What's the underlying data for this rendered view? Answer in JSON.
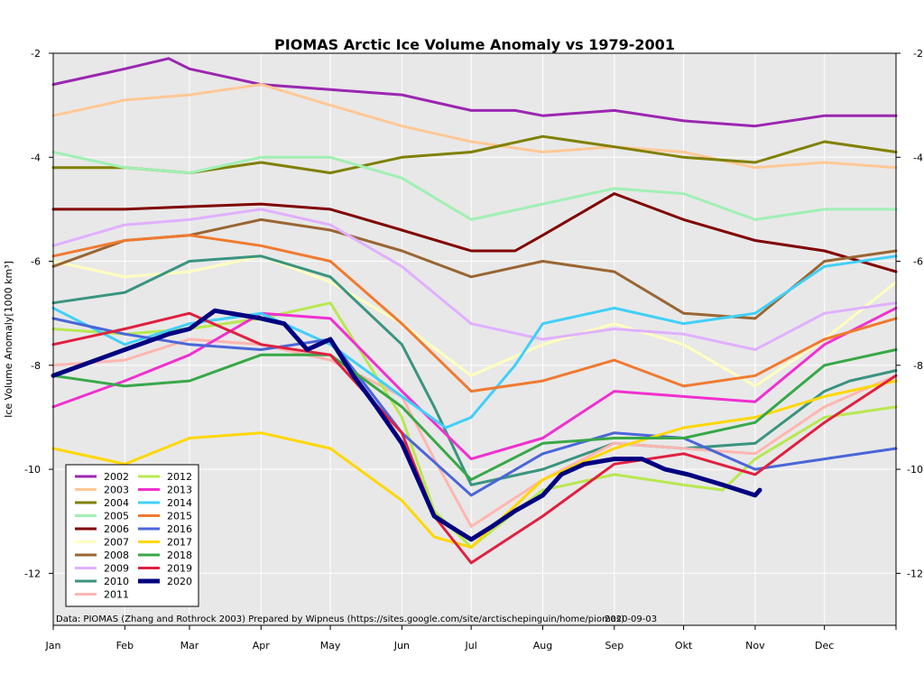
{
  "chart_data": {
    "type": "line",
    "title": "PIOMAS Arctic Ice Volume Anomaly vs 1979-2001",
    "ylabel": "Ice Volume Anomaly[1000 km³]",
    "xlabel": "",
    "ylim": [
      -13,
      -2
    ],
    "xlim": [
      0,
      365
    ],
    "y_ticks": [
      -2,
      -4,
      -6,
      -8,
      -10,
      -12
    ],
    "y_tick_labels": [
      "-2",
      "-4",
      "-6",
      "-8",
      "-10",
      "-12"
    ],
    "x_ticks": [
      0,
      31,
      59,
      90,
      120,
      151,
      181,
      212,
      243,
      273,
      304,
      334
    ],
    "x_tick_labels": [
      "Jan",
      "Feb",
      "Mar",
      "Apr",
      "May",
      "Jun",
      "Jul",
      "Aug",
      "Sep",
      "Okt",
      "Nov",
      "Dec"
    ],
    "grid": true,
    "legend_position": "bottom-left",
    "plot_background": "#e8e8e8",
    "credit": "Data: PIOMAS (Zhang and Rothrock 2003) Prepared by Wipneus (https://sites.google.com/site/arctischepinguin/home/piomas)",
    "date": "2020-09-03",
    "series": [
      {
        "name": "2002",
        "color": "#9b27b0",
        "width": 3,
        "x": [
          0,
          31,
          50,
          59,
          90,
          120,
          151,
          181,
          200,
          212,
          243,
          273,
          304,
          334,
          365
        ],
        "values": [
          -2.6,
          -2.3,
          -2.1,
          -2.3,
          -2.6,
          -2.7,
          -2.8,
          -3.1,
          -3.1,
          -3.2,
          -3.1,
          -3.3,
          -3.4,
          -3.2,
          -3.2
        ]
      },
      {
        "name": "2003",
        "color": "#ffc896",
        "width": 3,
        "x": [
          0,
          31,
          59,
          90,
          120,
          151,
          181,
          212,
          243,
          273,
          304,
          334,
          365
        ],
        "values": [
          -3.2,
          -2.9,
          -2.8,
          -2.6,
          -3.0,
          -3.4,
          -3.7,
          -3.9,
          -3.8,
          -3.9,
          -4.2,
          -4.1,
          -4.2
        ]
      },
      {
        "name": "2004",
        "color": "#808000",
        "width": 3,
        "x": [
          0,
          31,
          59,
          90,
          120,
          151,
          181,
          212,
          243,
          273,
          304,
          334,
          365
        ],
        "values": [
          -4.2,
          -4.2,
          -4.3,
          -4.1,
          -4.3,
          -4.0,
          -3.9,
          -3.6,
          -3.8,
          -4.0,
          -4.1,
          -3.7,
          -3.9
        ]
      },
      {
        "name": "2005",
        "color": "#a0f0b4",
        "width": 3,
        "x": [
          0,
          31,
          59,
          90,
          120,
          151,
          181,
          212,
          243,
          273,
          304,
          334,
          365
        ],
        "values": [
          -3.9,
          -4.2,
          -4.3,
          -4.0,
          -4.0,
          -4.4,
          -5.2,
          -4.9,
          -4.6,
          -4.7,
          -5.2,
          -5.0,
          -5.0
        ]
      },
      {
        "name": "2006",
        "color": "#800000",
        "width": 3,
        "x": [
          0,
          31,
          59,
          90,
          120,
          151,
          181,
          200,
          212,
          243,
          273,
          304,
          334,
          365
        ],
        "values": [
          -5.0,
          -5.0,
          -4.95,
          -4.9,
          -5.0,
          -5.4,
          -5.8,
          -5.8,
          -5.5,
          -4.7,
          -5.2,
          -5.6,
          -5.8,
          -6.2
        ]
      },
      {
        "name": "2007",
        "color": "#ffffc0",
        "width": 3,
        "x": [
          0,
          31,
          59,
          90,
          120,
          151,
          181,
          212,
          243,
          273,
          304,
          334,
          365
        ],
        "values": [
          -6.0,
          -6.3,
          -6.2,
          -5.9,
          -6.4,
          -7.2,
          -8.2,
          -7.6,
          -7.2,
          -7.6,
          -8.4,
          -7.5,
          -6.4
        ]
      },
      {
        "name": "2008",
        "color": "#996633",
        "width": 3,
        "x": [
          0,
          31,
          59,
          90,
          120,
          151,
          181,
          212,
          243,
          273,
          304,
          334,
          365
        ],
        "values": [
          -6.1,
          -5.6,
          -5.5,
          -5.2,
          -5.4,
          -5.8,
          -6.3,
          -6.0,
          -6.2,
          -7.0,
          -7.1,
          -6.0,
          -5.8
        ]
      },
      {
        "name": "2009",
        "color": "#e0b0ff",
        "width": 3,
        "x": [
          0,
          31,
          59,
          90,
          120,
          151,
          181,
          212,
          243,
          273,
          304,
          334,
          365
        ],
        "values": [
          -5.7,
          -5.3,
          -5.2,
          -5.0,
          -5.3,
          -6.1,
          -7.2,
          -7.5,
          -7.3,
          -7.4,
          -7.7,
          -7.0,
          -6.8
        ]
      },
      {
        "name": "2010",
        "color": "#3a9480",
        "width": 3,
        "x": [
          0,
          31,
          59,
          90,
          120,
          151,
          165,
          181,
          212,
          243,
          273,
          304,
          334,
          345,
          365
        ],
        "values": [
          -6.8,
          -6.6,
          -6.0,
          -5.9,
          -6.3,
          -7.6,
          -8.8,
          -10.3,
          -10.0,
          -9.5,
          -9.6,
          -9.5,
          -8.5,
          -8.3,
          -8.1
        ]
      },
      {
        "name": "2011",
        "color": "#ffb6b0",
        "width": 3,
        "x": [
          0,
          31,
          59,
          90,
          120,
          151,
          165,
          181,
          212,
          243,
          273,
          304,
          334,
          365
        ],
        "values": [
          -8.0,
          -7.9,
          -7.5,
          -7.6,
          -7.9,
          -8.6,
          -9.8,
          -11.1,
          -10.2,
          -9.5,
          -9.6,
          -9.7,
          -8.8,
          -8.2
        ]
      },
      {
        "name": "2012",
        "color": "#b8e850",
        "width": 3,
        "x": [
          0,
          31,
          59,
          90,
          120,
          151,
          165,
          181,
          212,
          243,
          273,
          290,
          304,
          334,
          365
        ],
        "values": [
          -7.3,
          -7.4,
          -7.3,
          -7.1,
          -6.8,
          -9.0,
          -10.8,
          -11.5,
          -10.4,
          -10.1,
          -10.3,
          -10.4,
          -9.8,
          -9.0,
          -8.8
        ]
      },
      {
        "name": "2013",
        "color": "#f030d0",
        "width": 3,
        "x": [
          0,
          31,
          59,
          90,
          120,
          151,
          181,
          212,
          243,
          273,
          304,
          334,
          365
        ],
        "values": [
          -8.8,
          -8.3,
          -7.8,
          -7.0,
          -7.1,
          -8.5,
          -9.8,
          -9.4,
          -8.5,
          -8.6,
          -8.7,
          -7.6,
          -6.9
        ]
      },
      {
        "name": "2014",
        "color": "#40d0f8",
        "width": 3,
        "x": [
          0,
          31,
          59,
          90,
          120,
          151,
          170,
          181,
          200,
          212,
          243,
          273,
          304,
          334,
          365
        ],
        "values": [
          -6.9,
          -7.6,
          -7.2,
          -7.0,
          -7.6,
          -8.6,
          -9.2,
          -9.0,
          -8.0,
          -7.2,
          -6.9,
          -7.2,
          -7.0,
          -6.1,
          -5.9
        ]
      },
      {
        "name": "2015",
        "color": "#f07a30",
        "width": 3,
        "x": [
          0,
          31,
          59,
          90,
          120,
          151,
          181,
          212,
          243,
          273,
          304,
          334,
          365
        ],
        "values": [
          -5.9,
          -5.6,
          -5.5,
          -5.7,
          -6.0,
          -7.2,
          -8.5,
          -8.3,
          -7.9,
          -8.4,
          -8.2,
          -7.5,
          -7.1
        ]
      },
      {
        "name": "2016",
        "color": "#4a66d8",
        "width": 3,
        "x": [
          0,
          31,
          59,
          90,
          120,
          151,
          181,
          212,
          243,
          273,
          304,
          334,
          365
        ],
        "values": [
          -7.1,
          -7.4,
          -7.6,
          -7.7,
          -7.5,
          -9.3,
          -10.5,
          -9.7,
          -9.3,
          -9.4,
          -10.0,
          -9.8,
          -9.6
        ]
      },
      {
        "name": "2017",
        "color": "#ffd700",
        "width": 3,
        "x": [
          0,
          31,
          59,
          90,
          120,
          151,
          165,
          181,
          212,
          243,
          273,
          304,
          334,
          365
        ],
        "values": [
          -9.6,
          -9.9,
          -9.4,
          -9.3,
          -9.6,
          -10.6,
          -11.3,
          -11.5,
          -10.2,
          -9.6,
          -9.2,
          -9.0,
          -8.6,
          -8.3
        ]
      },
      {
        "name": "2018",
        "color": "#38a848",
        "width": 3,
        "x": [
          0,
          31,
          59,
          90,
          120,
          151,
          181,
          212,
          243,
          273,
          304,
          334,
          365
        ],
        "values": [
          -8.2,
          -8.4,
          -8.3,
          -7.8,
          -7.8,
          -8.8,
          -10.2,
          -9.5,
          -9.4,
          -9.4,
          -9.1,
          -8.0,
          -7.7
        ]
      },
      {
        "name": "2019",
        "color": "#e02040",
        "width": 3,
        "x": [
          0,
          31,
          59,
          90,
          120,
          151,
          165,
          181,
          212,
          243,
          273,
          304,
          334,
          365
        ],
        "values": [
          -7.6,
          -7.3,
          -7.0,
          -7.6,
          -7.8,
          -9.3,
          -10.9,
          -11.8,
          -10.9,
          -9.9,
          -9.7,
          -10.1,
          -9.1,
          -8.2
        ]
      },
      {
        "name": "2020",
        "color": "#000080",
        "width": 5,
        "x": [
          0,
          31,
          50,
          59,
          70,
          90,
          100,
          110,
          120,
          130,
          140,
          151,
          160,
          165,
          172,
          181,
          190,
          200,
          212,
          220,
          230,
          243,
          255,
          265,
          275,
          290,
          304,
          306
        ],
        "values": [
          -8.2,
          -7.7,
          -7.4,
          -7.3,
          -6.95,
          -7.1,
          -7.2,
          -7.7,
          -7.5,
          -8.2,
          -8.8,
          -9.5,
          -10.4,
          -10.9,
          -11.1,
          -11.35,
          -11.1,
          -10.8,
          -10.5,
          -10.1,
          -9.9,
          -9.8,
          -9.8,
          -10.0,
          -10.1,
          -10.3,
          -10.5,
          -10.4
        ]
      }
    ]
  }
}
